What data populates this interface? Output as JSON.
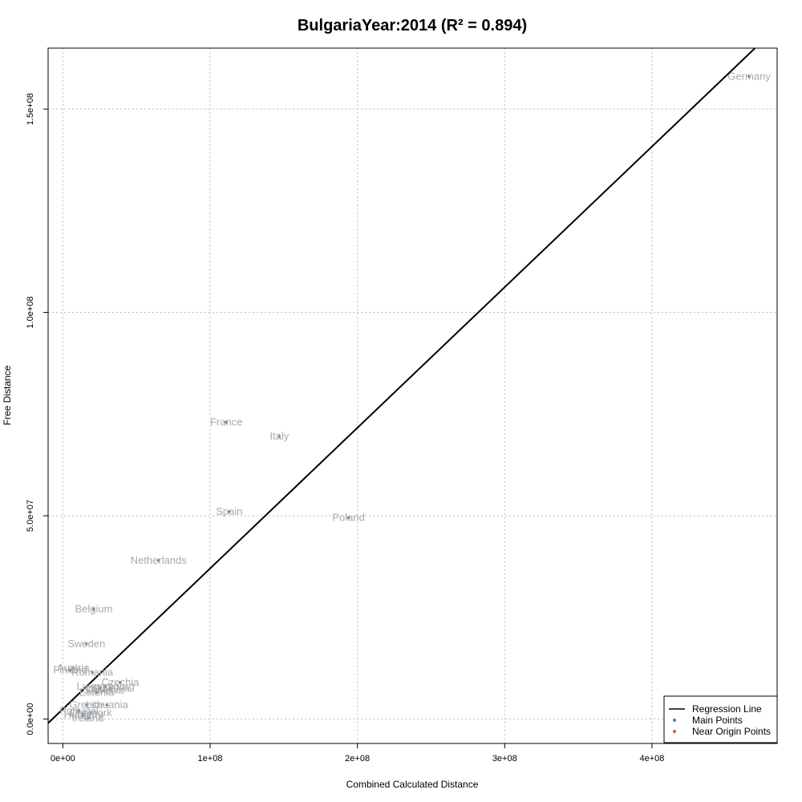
{
  "chart_data": {
    "type": "scatter",
    "title": "BulgariaYear:2014 (R² = 0.894)",
    "xlabel": "Combined Calculated Distance",
    "ylabel": "Free Distance",
    "xlim": [
      -10000000,
      485000000
    ],
    "ylim": [
      -6000000,
      165000000
    ],
    "x_ticks": [
      0,
      100000000,
      200000000,
      300000000,
      400000000
    ],
    "x_tick_labels": [
      "0e+00",
      "1e+08",
      "2e+08",
      "3e+08",
      "4e+08"
    ],
    "y_ticks": [
      0,
      50000000,
      100000000,
      150000000
    ],
    "y_tick_labels": [
      "0.0e+00",
      "5.0e+07",
      "1.0e+08",
      "1.5e+08"
    ],
    "grid": true,
    "legend_position": "bottom-right",
    "legend": [
      {
        "label": "Regression Line",
        "kind": "line",
        "color": "#000000"
      },
      {
        "label": "Main Points",
        "kind": "point",
        "color": "#4682b4"
      },
      {
        "label": "Near Origin Points",
        "kind": "point",
        "color": "#cd5c5c"
      }
    ],
    "regression": {
      "x": [
        -10000000,
        470000000
      ],
      "y": [
        -1000000,
        165000000
      ]
    },
    "points": [
      {
        "label": "Germany",
        "x": 466000000,
        "y": 158000000
      },
      {
        "label": "France",
        "x": 111000000,
        "y": 73000000
      },
      {
        "label": "Italy",
        "x": 147000000,
        "y": 69500000
      },
      {
        "label": "Spain",
        "x": 113000000,
        "y": 51000000
      },
      {
        "label": "Poland",
        "x": 194000000,
        "y": 49500000
      },
      {
        "label": "Netherlands",
        "x": 65000000,
        "y": 39000000
      },
      {
        "label": "Belgium",
        "x": 21000000,
        "y": 27000000
      },
      {
        "label": "Sweden",
        "x": 16000000,
        "y": 18500000
      },
      {
        "label": "Austria",
        "x": 7000000,
        "y": 12500000
      },
      {
        "label": "Finland",
        "x": 5000000,
        "y": 12000000
      },
      {
        "label": "Romania",
        "x": 20000000,
        "y": 11500000
      },
      {
        "label": "Czechia",
        "x": 39000000,
        "y": 9000000
      },
      {
        "label": "Luxembourg",
        "x": 29000000,
        "y": 8000000
      },
      {
        "label": "Slovakia",
        "x": 32000000,
        "y": 7500000
      },
      {
        "label": "Latvia",
        "x": 25000000,
        "y": 7500000
      },
      {
        "label": "Slovenia",
        "x": 28000000,
        "y": 7000000
      },
      {
        "label": "Estonia",
        "x": 23000000,
        "y": 6500000
      },
      {
        "label": "Greece",
        "x": 16000000,
        "y": 3500000
      },
      {
        "label": "Lithuania",
        "x": 30000000,
        "y": 3500000
      },
      {
        "label": "Portugal",
        "x": 11000000,
        "y": 2000000
      },
      {
        "label": "Denmark",
        "x": 19000000,
        "y": 1500000
      },
      {
        "label": "Hungary",
        "x": 14000000,
        "y": 1000000
      },
      {
        "label": "Ireland",
        "x": 17000000,
        "y": 200000
      }
    ]
  }
}
